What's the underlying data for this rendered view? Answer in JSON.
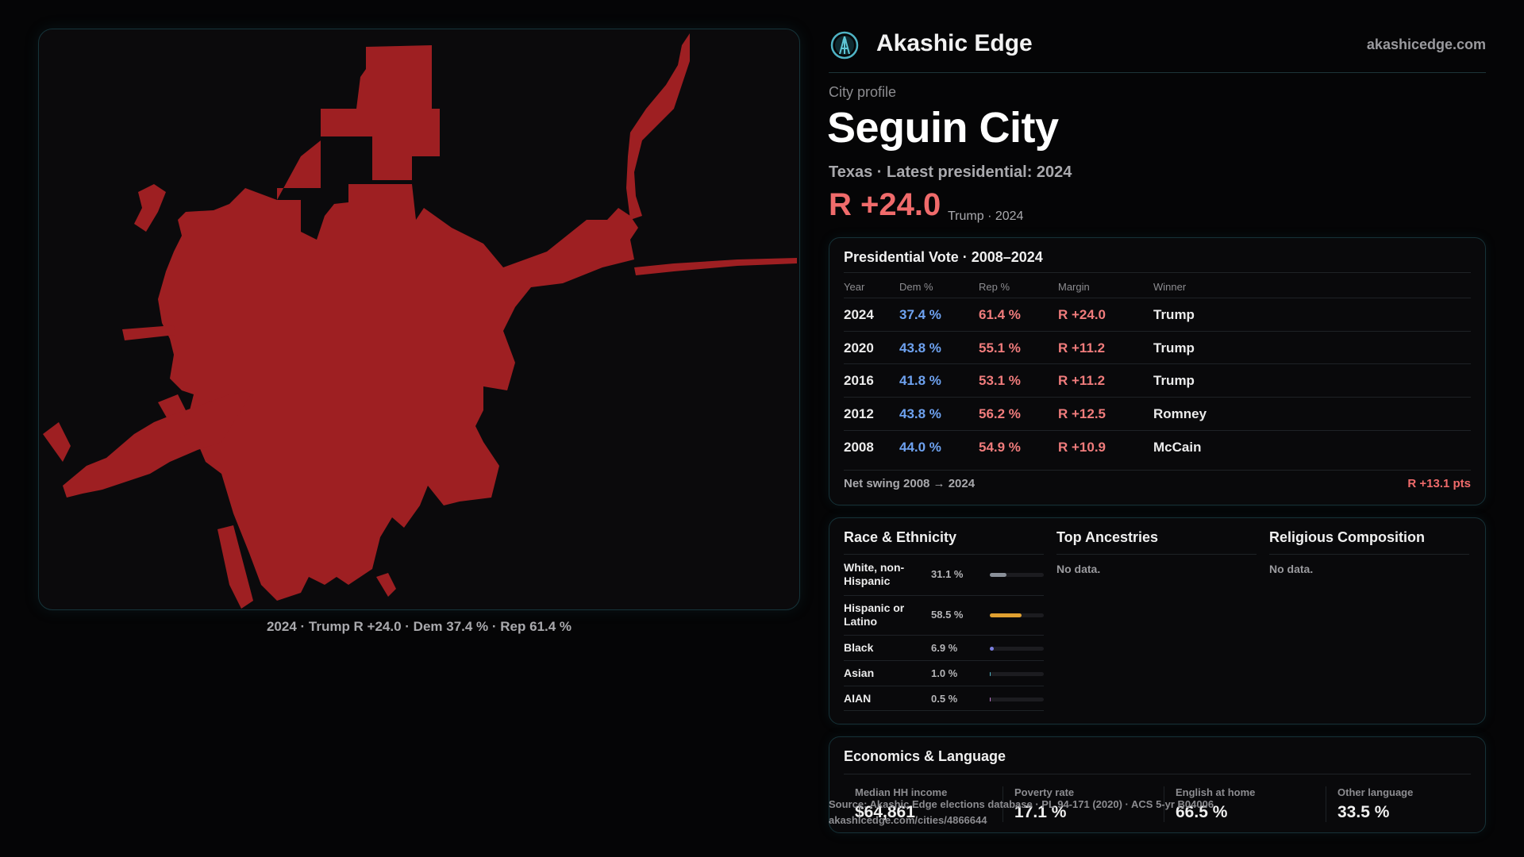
{
  "brand": {
    "name": "Akashic Edge",
    "url": "akashicedge.com",
    "accent": "#4fb3c4"
  },
  "profile": {
    "kicker": "City profile",
    "city": "Seguin City",
    "state_line": "Texas · Latest presidential: 2024",
    "margin": "R +24.0",
    "margin_note": "Trump · 2024",
    "margin_color": "#f06b6b"
  },
  "map": {
    "caption": "2024 · Trump R +24.0 · Dem 37.4 % · Rep 61.4 %",
    "fill_color": "#9e1f22"
  },
  "vote_table": {
    "title": "Presidential Vote · 2008–2024",
    "headers": [
      "Year",
      "Dem %",
      "Rep %",
      "Margin",
      "Winner"
    ],
    "rows": [
      {
        "year": "2024",
        "dem": "37.4 %",
        "rep": "61.4 %",
        "margin": "R +24.0",
        "winner": "Trump"
      },
      {
        "year": "2020",
        "dem": "43.8 %",
        "rep": "55.1 %",
        "margin": "R +11.2",
        "winner": "Trump"
      },
      {
        "year": "2016",
        "dem": "41.8 %",
        "rep": "53.1 %",
        "margin": "R +11.2",
        "winner": "Trump"
      },
      {
        "year": "2012",
        "dem": "43.8 %",
        "rep": "56.2 %",
        "margin": "R +12.5",
        "winner": "Romney"
      },
      {
        "year": "2008",
        "dem": "44.0 %",
        "rep": "54.9 %",
        "margin": "R +10.9",
        "winner": "McCain"
      }
    ],
    "swing_label": "Net swing 2008 → 2024",
    "swing_value": "R +13.1 pts"
  },
  "race": {
    "title": "Race & Ethnicity",
    "rows": [
      {
        "label": "White, non-Hispanic",
        "pct": "31.1 %",
        "share": 0.311,
        "color": "#8a9099"
      },
      {
        "label": "Hispanic or Latino",
        "pct": "58.5 %",
        "share": 0.585,
        "color": "#e0a030"
      },
      {
        "label": "Black",
        "pct": "6.9 %",
        "share": 0.069,
        "color": "#7b7fe0"
      },
      {
        "label": "Asian",
        "pct": "1.0 %",
        "share": 0.01,
        "color": "#4fb3c4"
      },
      {
        "label": "AIAN",
        "pct": "0.5 %",
        "share": 0.005,
        "color": "#c07ad0"
      }
    ]
  },
  "ancestries": {
    "title": "Top Ancestries",
    "empty": "No data."
  },
  "religion": {
    "title": "Religious Composition",
    "empty": "No data."
  },
  "economics": {
    "title": "Economics & Language",
    "stats": [
      {
        "label": "Median HH income",
        "value": "$64,861"
      },
      {
        "label": "Poverty rate",
        "value": "17.1 %"
      },
      {
        "label": "English at home",
        "value": "66.5 %"
      },
      {
        "label": "Other language",
        "value": "33.5 %"
      }
    ]
  },
  "footer": {
    "source": "Source: Akashic Edge elections database · PL 94-171 (2020) · ACS 5-yr B04006",
    "link": "akashicedge.com/cities/4866644"
  }
}
